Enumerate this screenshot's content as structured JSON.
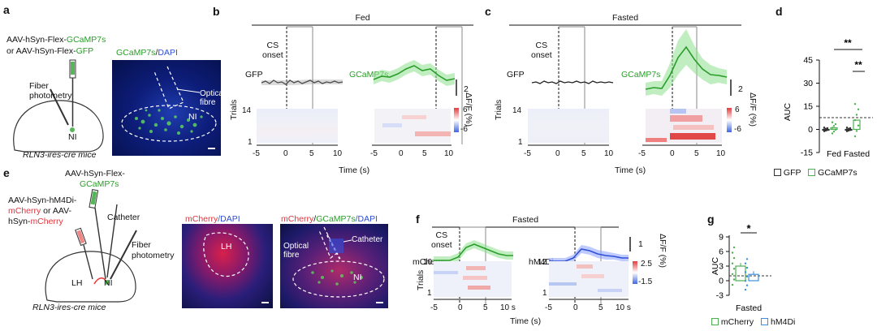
{
  "panels": {
    "a": "a",
    "b": "b",
    "c": "c",
    "d": "d",
    "e": "e",
    "f": "f",
    "g": "g"
  },
  "a": {
    "virus_line1_prefix": "AAV-hSyn-Flex-",
    "virus_line1_gene": "GCaMP7s",
    "virus_line2_prefix": "or AAV-hSyn-Flex-",
    "virus_line2_gene": "GFP",
    "fiber_label_1": "Fiber",
    "fiber_label_2": "photometry",
    "nucleus_label": "NI",
    "mice_label": "RLN3-ires-cre mice",
    "micro_title_gene": "GCaMP7s",
    "micro_title_sep": "/",
    "micro_title_stain": "DAPI",
    "micro_fibre_label_1": "Optical",
    "micro_fibre_label_2": "fibre",
    "micro_region_label": "NI"
  },
  "b": {
    "title": "Fed",
    "cs_onset_1": "CS",
    "cs_onset_2": "onset",
    "gfp_label": "GFP",
    "gcamp_label": "GCaMP7s",
    "scale_value": "2",
    "scale_unit": "ΔF/F (%)",
    "trials_label": "Trials",
    "trial_top": "14",
    "trial_bottom": "1",
    "cbar_max": "6",
    "cbar_min": "-6",
    "xticks_left": [
      "-5",
      "0",
      "5",
      "10"
    ],
    "xticks_right": [
      "-5",
      "0",
      "5",
      "10"
    ],
    "xlabel": "Time (s)"
  },
  "c": {
    "title": "Fasted",
    "cs_onset_1": "CS",
    "cs_onset_2": "onset",
    "gfp_label": "GFP",
    "gcamp_label": "GCaMP7s",
    "scale_value": "2",
    "scale_unit": "ΔF/F (%)",
    "trials_label": "Trials",
    "trial_top": "14",
    "trial_bottom": "1",
    "cbar_max": "6",
    "cbar_min": "-6",
    "xticks_left": [
      "-5",
      "0",
      "5",
      "10"
    ],
    "xticks_right": [
      "-5",
      "0",
      "5",
      "10"
    ],
    "xlabel": "Time (s)"
  },
  "d": {
    "ylabel": "AUC",
    "yticks": [
      "45",
      "30",
      "15",
      "0",
      "-15"
    ],
    "sig_top": "**",
    "sig_inner": "**",
    "xcats": [
      "Fed",
      "Fasted"
    ],
    "legend_gfp": "GFP",
    "legend_gcamp": "GCaMP7s"
  },
  "e": {
    "virus1_line1": "AAV-hSyn-Flex-",
    "virus1_line2": "GCaMP7s",
    "virus2_line1": "AAV-hSyn-hM4Di-",
    "virus2_line2_red": "mCherry",
    "virus2_line2_rest": " or AAV-",
    "virus2_line3_prefix": "hSyn-",
    "virus2_line3_red": "mCherry",
    "catheter_label": "Catheter",
    "fiber_label_1": "Fiber",
    "fiber_label_2": "photometry",
    "lh_label": "LH",
    "ni_label": "NI",
    "mice_label": "RLN3-ires-cre mice",
    "micro1_title_a": "mCherry",
    "micro1_title_b": "/DAPI",
    "micro1_region": "LH",
    "micro2_title_a": "mCherry",
    "micro2_title_b": "/",
    "micro2_title_c": "GCaMP7s",
    "micro2_title_d": "/DAPI",
    "micro2_fibre_1": "Optical",
    "micro2_fibre_2": "fibre",
    "micro2_catheter": "Catheter",
    "micro2_region": "NI"
  },
  "f": {
    "title": "Fasted",
    "cs_onset_1": "CS",
    "cs_onset_2": "onset",
    "mcherry_label": "mCherry",
    "hm4di_label": "hM4Di",
    "scale_value": "1",
    "scale_unit": "ΔF/F (%)",
    "trials_label": "Trials",
    "trial_top_left": "10",
    "trial_bottom_left": "1",
    "trial_top_right": "12",
    "trial_bottom_right": "1",
    "cbar_max": "2.5",
    "cbar_min": "-1.5",
    "xticks_left": [
      "-5",
      "0",
      "5",
      "10 s"
    ],
    "xticks_right": [
      "-5",
      "0",
      "5",
      "10 s"
    ],
    "xlabel": "Time (s)"
  },
  "g": {
    "ylabel": "AUC",
    "yticks": [
      "9",
      "6",
      "3",
      "0",
      "-3"
    ],
    "sig": "*",
    "xcat": "Fasted",
    "legend_mcherry": "mCherry",
    "legend_hm4di": "hM4Di"
  },
  "chart_data": [
    {
      "id": "d",
      "type": "bar",
      "title": "",
      "xlabel": "",
      "ylabel": "AUC",
      "ylim": [
        -15,
        45
      ],
      "categories": [
        "Fed",
        "Fasted"
      ],
      "series": [
        {
          "name": "GFP",
          "values": [
            0,
            0
          ],
          "color": "#333333"
        },
        {
          "name": "GCaMP7s",
          "values": [
            1,
            6
          ],
          "color": "#4caf50"
        }
      ],
      "significance": [
        {
          "between": "Fed GCaMP7s vs Fasted GCaMP7s",
          "label": "**"
        },
        {
          "between": "Fasted GFP vs Fasted GCaMP7s",
          "label": "**"
        }
      ]
    },
    {
      "id": "g",
      "type": "bar",
      "title": "",
      "xlabel": "Fasted",
      "ylabel": "AUC",
      "ylim": [
        -3,
        9
      ],
      "categories": [
        "mCherry",
        "hM4Di"
      ],
      "values": [
        3,
        1.3
      ],
      "colors": [
        "#4caf50",
        "#3b8fe0"
      ],
      "significance": [
        {
          "between": "mCherry vs hM4Di",
          "label": "*"
        }
      ]
    }
  ]
}
